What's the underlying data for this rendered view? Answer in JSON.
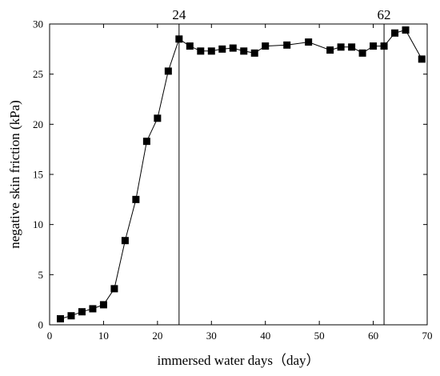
{
  "chart_data": {
    "type": "line",
    "title": "",
    "xlabel": "immersed water days（day）",
    "ylabel": "negative skin friction (kPa)",
    "xlim": [
      0,
      70
    ],
    "ylim": [
      0,
      30
    ],
    "xticks": [
      0,
      10,
      20,
      30,
      40,
      50,
      60,
      70
    ],
    "yticks": [
      0,
      5,
      10,
      15,
      20,
      25,
      30
    ],
    "grid": false,
    "legend": "none",
    "marker": "square",
    "color": "#000000",
    "series": [
      {
        "x": [
          2,
          4,
          6,
          8,
          10,
          12,
          14,
          16,
          18,
          20,
          22,
          24,
          26,
          28,
          30,
          32,
          34,
          36,
          38,
          40,
          44,
          48,
          52,
          54,
          56,
          58,
          60,
          62,
          64,
          66,
          69
        ],
        "y": [
          0.6,
          0.9,
          1.3,
          1.6,
          2.0,
          3.6,
          8.4,
          12.5,
          18.3,
          20.6,
          25.3,
          28.5,
          27.8,
          27.3,
          27.3,
          27.5,
          27.6,
          27.3,
          27.1,
          27.8,
          27.9,
          28.2,
          27.4,
          27.7,
          27.7,
          27.1,
          27.8,
          27.8,
          29.1,
          29.4,
          26.5
        ]
      }
    ],
    "reference_lines": [
      {
        "x": 24,
        "label": "24"
      },
      {
        "x": 62,
        "label": "62"
      }
    ]
  }
}
